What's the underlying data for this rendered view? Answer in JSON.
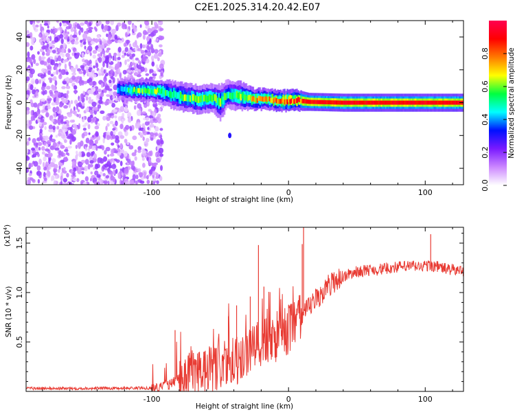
{
  "figure_title": "C2E1.2025.314.20.42.E07",
  "chart_data": [
    {
      "type": "heatmap",
      "title": "C2E1.2025.314.20.42.E07",
      "xlabel": "Height of straight line (km)",
      "ylabel": "Frequency (Hz)",
      "xlim": [
        -192,
        128
      ],
      "ylim": [
        -50,
        50
      ],
      "xticks": [
        -100,
        0,
        100
      ],
      "yticks": [
        -40,
        -20,
        0,
        20,
        40
      ],
      "colorbar": {
        "label": "Normalized spectral amplitude",
        "range": [
          0.0,
          1.0
        ],
        "ticks": [
          0.0,
          0.2,
          0.4,
          0.6,
          0.8
        ],
        "tick_labels": [
          "0.0",
          "0.2",
          "0.4",
          "0.6",
          "0.8"
        ],
        "colors": [
          "#ffffff",
          "#cc88ff",
          "#7a1aff",
          "#0010ff",
          "#00ffff",
          "#00ff40",
          "#ffff00",
          "#ff7a00",
          "#ff0000",
          "#ff0050"
        ]
      },
      "noise_region": {
        "x_start": -192,
        "x_end": -92,
        "amplitude": 0.15
      },
      "signal_band": [
        {
          "x": -125,
          "f": 8,
          "width": 3,
          "amp": 0.45
        },
        {
          "x": -110,
          "f": 7.5,
          "width": 3,
          "amp": 0.6
        },
        {
          "x": -95,
          "f": 7,
          "width": 3,
          "amp": 0.6
        },
        {
          "x": -85,
          "f": 5,
          "width": 4,
          "amp": 0.55
        },
        {
          "x": -75,
          "f": 3,
          "width": 4,
          "amp": 0.6
        },
        {
          "x": -65,
          "f": 2,
          "width": 4,
          "amp": 0.6
        },
        {
          "x": -55,
          "f": 3,
          "width": 4,
          "amp": 0.55
        },
        {
          "x": -50,
          "f": 0,
          "width": 5,
          "amp": 0.6
        },
        {
          "x": -45,
          "f": 5,
          "width": 4,
          "amp": 0.5
        },
        {
          "x": -35,
          "f": 4,
          "width": 4,
          "amp": 0.6
        },
        {
          "x": -25,
          "f": 2,
          "width": 3,
          "amp": 0.75
        },
        {
          "x": -15,
          "f": 2,
          "width": 3,
          "amp": 0.75
        },
        {
          "x": -5,
          "f": 1,
          "width": 3,
          "amp": 0.8
        },
        {
          "x": 5,
          "f": 1.5,
          "width": 3,
          "amp": 0.85
        },
        {
          "x": 15,
          "f": 0.5,
          "width": 2.5,
          "amp": 0.9
        },
        {
          "x": 40,
          "f": 0,
          "width": 2.5,
          "amp": 0.9
        },
        {
          "x": 70,
          "f": 0,
          "width": 2.5,
          "amp": 0.9
        },
        {
          "x": 100,
          "f": 0,
          "width": 2.5,
          "amp": 0.9
        },
        {
          "x": 128,
          "f": 0,
          "width": 2.5,
          "amp": 0.9
        }
      ],
      "isolated_blobs": [
        {
          "x": -43,
          "f": -20,
          "amp": 0.3
        }
      ]
    },
    {
      "type": "line",
      "xlabel": "Height of straight line (km)",
      "ylabel": "SNR (10 * v/v)",
      "y_multiplier_label": "(x10",
      "y_multiplier_exponent": "4",
      "y_multiplier_close": ")",
      "xlim": [
        -192,
        128
      ],
      "ylim": [
        0,
        16600
      ],
      "xticks": [
        -100,
        0,
        100
      ],
      "yticks": [
        5000,
        10000,
        15000
      ],
      "ytick_labels": [
        "0.5",
        "1.0",
        "1.5"
      ],
      "series": [
        {
          "name": "SNR",
          "color": "#e83a32",
          "x": [
            -192,
            -150,
            -100,
            -95,
            -90,
            -85,
            -80,
            -75,
            -70,
            -65,
            -60,
            -55,
            -50,
            -45,
            -40,
            -35,
            -30,
            -25,
            -20,
            -15,
            -10,
            -5,
            0,
            5,
            10,
            15,
            20,
            25,
            30,
            35,
            40,
            45,
            50,
            55,
            60,
            65,
            70,
            75,
            80,
            85,
            90,
            95,
            100,
            105,
            110,
            115,
            120,
            125,
            128
          ],
          "y": [
            300,
            300,
            350,
            400,
            500,
            900,
            1300,
            1500,
            1800,
            1900,
            2000,
            2300,
            2500,
            2700,
            3000,
            3400,
            3800,
            4200,
            4700,
            5100,
            5400,
            5800,
            6300,
            6800,
            7500,
            8400,
            9300,
            10000,
            10800,
            11300,
            11600,
            11900,
            12100,
            12200,
            12300,
            12300,
            12400,
            12500,
            12600,
            12600,
            12700,
            12600,
            12700,
            12700,
            12600,
            12400,
            12300,
            12200,
            12200
          ],
          "spikes": [
            {
              "x": -83,
              "y": 6200
            },
            {
              "x": -62,
              "y": 4000
            },
            {
              "x": -44,
              "y": 7600
            },
            {
              "x": -38,
              "y": 8700
            },
            {
              "x": -28,
              "y": 9600
            },
            {
              "x": -22,
              "y": 14800
            },
            {
              "x": -18,
              "y": 10600
            },
            {
              "x": 10,
              "y": 14900
            },
            {
              "x": 11,
              "y": 16600
            },
            {
              "x": 12,
              "y": 3900
            },
            {
              "x": 104,
              "y": 15900
            },
            {
              "x": 105,
              "y": 8800
            }
          ]
        }
      ]
    }
  ]
}
